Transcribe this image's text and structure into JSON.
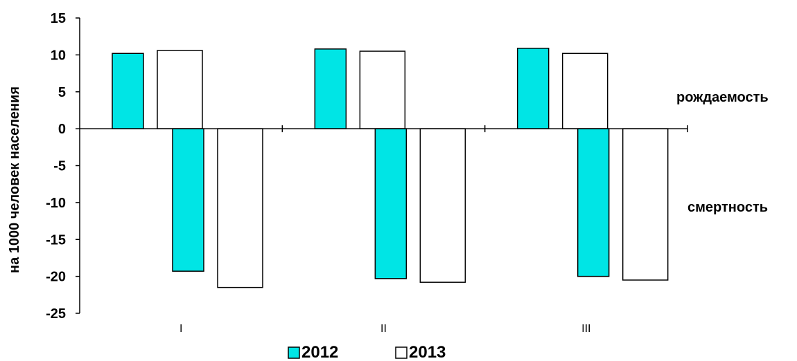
{
  "chart_data": {
    "type": "bar",
    "title": "",
    "xlabel": "",
    "ylabel": "на 1000 человек населения",
    "categories": [
      "I",
      "II",
      "III"
    ],
    "ylim": [
      -25,
      15
    ],
    "yticks": [
      15,
      10,
      5,
      0,
      -5,
      -10,
      -15,
      -20,
      -25
    ],
    "grid": false,
    "legend_position": "bottom",
    "annotations": {
      "positive": "рождаемость",
      "negative": "смертность"
    },
    "colors": {
      "2012": "#00e5e5",
      "2013": "#ffffff",
      "edge": "#000000"
    },
    "groups": [
      {
        "name": "рождаемость",
        "series": [
          {
            "name": "2012",
            "values": [
              10.2,
              10.8,
              10.9
            ]
          },
          {
            "name": "2013",
            "values": [
              10.6,
              10.5,
              10.2
            ]
          }
        ]
      },
      {
        "name": "смертность",
        "series": [
          {
            "name": "2012",
            "values": [
              -19.3,
              -20.3,
              -20.0
            ]
          },
          {
            "name": "2013",
            "values": [
              -21.5,
              -20.8,
              -20.5
            ]
          }
        ]
      }
    ],
    "legend": [
      "2012",
      "2013"
    ]
  }
}
